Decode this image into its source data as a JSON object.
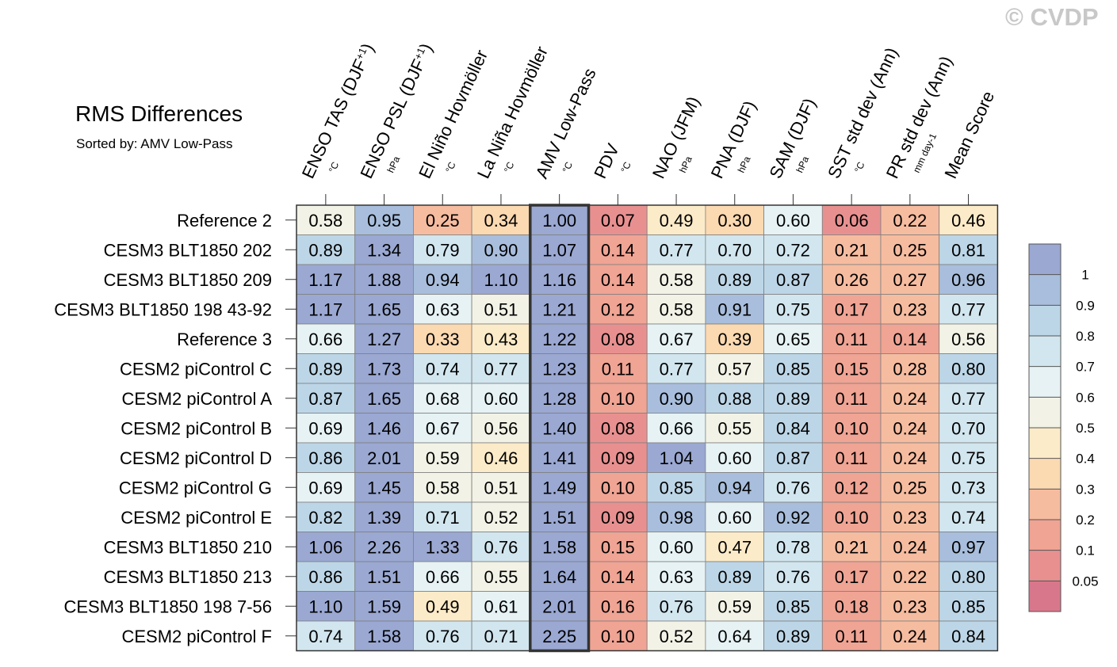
{
  "header": {
    "title": "RMS Differences",
    "subtitle": "Sorted by: AMV Low-Pass",
    "copyright": "© CVDP"
  },
  "chart_data": {
    "type": "heatmap",
    "title": "RMS Differences",
    "sorted_by": "AMV Low-Pass",
    "highlighted_column": "AMV Low-Pass",
    "columns": [
      {
        "label": "ENSO TAS (DJF",
        "sup": "+1",
        "tail": ")",
        "unit": "°C"
      },
      {
        "label": "ENSO PSL (DJF",
        "sup": "+1",
        "tail": ")",
        "unit": "hPa"
      },
      {
        "label": "El Niño Hovmöller",
        "sup": "",
        "tail": "",
        "unit": "°C"
      },
      {
        "label": "La Niña Hovmöller",
        "sup": "",
        "tail": "",
        "unit": "°C"
      },
      {
        "label": "AMV Low-Pass",
        "sup": "",
        "tail": "",
        "unit": "°C"
      },
      {
        "label": "PDV",
        "sup": "",
        "tail": "",
        "unit": "°C"
      },
      {
        "label": "NAO (JFM)",
        "sup": "",
        "tail": "",
        "unit": "hPa"
      },
      {
        "label": "PNA (DJF)",
        "sup": "",
        "tail": "",
        "unit": "hPa"
      },
      {
        "label": "SAM (DJF)",
        "sup": "",
        "tail": "",
        "unit": "hPa"
      },
      {
        "label": "SST std dev (Ann)",
        "sup": "",
        "tail": "",
        "unit": "°C"
      },
      {
        "label": "PR std dev (Ann)",
        "sup": "",
        "tail": "",
        "unit": "mm day-1"
      },
      {
        "label": "Mean Score",
        "sup": "",
        "tail": "",
        "unit": ""
      }
    ],
    "rows": [
      "Reference 2",
      "CESM3 BLT1850 202",
      "CESM3 BLT1850 209",
      "CESM3 BLT1850 198 43-92",
      "Reference 3",
      "CESM2 piControl C",
      "CESM2 piControl A",
      "CESM2 piControl B",
      "CESM2 piControl D",
      "CESM2 piControl G",
      "CESM2 piControl E",
      "CESM3 BLT1850 210",
      "CESM3 BLT1850 213",
      "CESM3 BLT1850 198 7-56",
      "CESM2 piControl F"
    ],
    "values": [
      [
        "0.58",
        "0.95",
        "0.25",
        "0.34",
        "1.00",
        "0.07",
        "0.49",
        "0.30",
        "0.60",
        "0.06",
        "0.22",
        "0.46"
      ],
      [
        "0.89",
        "1.34",
        "0.79",
        "0.90",
        "1.07",
        "0.14",
        "0.77",
        "0.70",
        "0.72",
        "0.21",
        "0.25",
        "0.81"
      ],
      [
        "1.17",
        "1.88",
        "0.94",
        "1.10",
        "1.16",
        "0.14",
        "0.58",
        "0.89",
        "0.87",
        "0.26",
        "0.27",
        "0.96"
      ],
      [
        "1.17",
        "1.65",
        "0.63",
        "0.51",
        "1.21",
        "0.12",
        "0.58",
        "0.91",
        "0.75",
        "0.17",
        "0.23",
        "0.77"
      ],
      [
        "0.66",
        "1.27",
        "0.33",
        "0.43",
        "1.22",
        "0.08",
        "0.67",
        "0.39",
        "0.65",
        "0.11",
        "0.14",
        "0.56"
      ],
      [
        "0.89",
        "1.73",
        "0.74",
        "0.77",
        "1.23",
        "0.11",
        "0.77",
        "0.57",
        "0.85",
        "0.15",
        "0.28",
        "0.80"
      ],
      [
        "0.87",
        "1.65",
        "0.68",
        "0.60",
        "1.28",
        "0.10",
        "0.90",
        "0.88",
        "0.89",
        "0.11",
        "0.24",
        "0.77"
      ],
      [
        "0.69",
        "1.46",
        "0.67",
        "0.56",
        "1.40",
        "0.08",
        "0.66",
        "0.55",
        "0.84",
        "0.10",
        "0.24",
        "0.70"
      ],
      [
        "0.86",
        "2.01",
        "0.59",
        "0.46",
        "1.41",
        "0.09",
        "1.04",
        "0.60",
        "0.87",
        "0.11",
        "0.24",
        "0.75"
      ],
      [
        "0.69",
        "1.45",
        "0.58",
        "0.51",
        "1.49",
        "0.10",
        "0.85",
        "0.94",
        "0.76",
        "0.12",
        "0.25",
        "0.73"
      ],
      [
        "0.82",
        "1.39",
        "0.71",
        "0.52",
        "1.51",
        "0.09",
        "0.98",
        "0.60",
        "0.92",
        "0.10",
        "0.23",
        "0.74"
      ],
      [
        "1.06",
        "2.26",
        "1.33",
        "0.76",
        "1.58",
        "0.15",
        "0.60",
        "0.47",
        "0.78",
        "0.21",
        "0.24",
        "0.97"
      ],
      [
        "0.86",
        "1.51",
        "0.66",
        "0.55",
        "1.64",
        "0.14",
        "0.63",
        "0.89",
        "0.76",
        "0.17",
        "0.22",
        "0.80"
      ],
      [
        "1.10",
        "1.59",
        "0.49",
        "0.61",
        "2.01",
        "0.16",
        "0.76",
        "0.59",
        "0.85",
        "0.18",
        "0.23",
        "0.85"
      ],
      [
        "0.74",
        "1.58",
        "0.76",
        "0.71",
        "2.25",
        "0.10",
        "0.52",
        "0.64",
        "0.89",
        "0.11",
        "0.24",
        "0.84"
      ]
    ],
    "colorbar": {
      "labels": [
        "1",
        "0.9",
        "0.8",
        "0.7",
        "0.6",
        "0.5",
        "0.4",
        "0.3",
        "0.2",
        "0.1",
        "0.05"
      ],
      "thresholds": [
        1,
        0.9,
        0.8,
        0.7,
        0.6,
        0.5,
        0.4,
        0.3,
        0.2,
        0.1,
        0.05
      ],
      "colors": [
        "#9aa8d2",
        "#a8bedc",
        "#bdd6e7",
        "#d2e6ef",
        "#e6f2f4",
        "#f2f2e6",
        "#fcebc8",
        "#fbd9b1",
        "#f6bca0",
        "#f0a494",
        "#e89090",
        "#d8778b"
      ]
    }
  }
}
